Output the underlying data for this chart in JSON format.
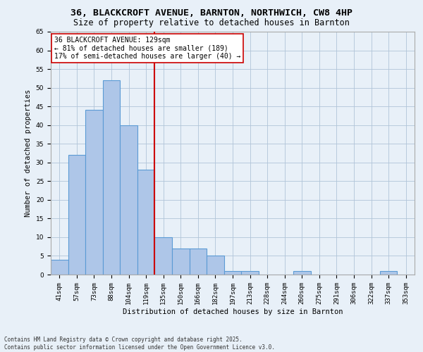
{
  "title_line1": "36, BLACKCROFT AVENUE, BARNTON, NORTHWICH, CW8 4HP",
  "title_line2": "Size of property relative to detached houses in Barnton",
  "xlabel": "Distribution of detached houses by size in Barnton",
  "ylabel": "Number of detached properties",
  "categories": [
    "41sqm",
    "57sqm",
    "73sqm",
    "88sqm",
    "104sqm",
    "119sqm",
    "135sqm",
    "150sqm",
    "166sqm",
    "182sqm",
    "197sqm",
    "213sqm",
    "228sqm",
    "244sqm",
    "260sqm",
    "275sqm",
    "291sqm",
    "306sqm",
    "322sqm",
    "337sqm",
    "353sqm"
  ],
  "values": [
    4,
    32,
    44,
    52,
    40,
    28,
    10,
    7,
    7,
    5,
    1,
    1,
    0,
    0,
    1,
    0,
    0,
    0,
    0,
    1,
    0
  ],
  "bar_color": "#aec6e8",
  "bar_edge_color": "#5b9bd5",
  "vline_x": 6.0,
  "vline_color": "#cc0000",
  "annotation_text": "36 BLACKCROFT AVENUE: 129sqm\n← 81% of detached houses are smaller (189)\n17% of semi-detached houses are larger (40) →",
  "annotation_box_color": "#ffffff",
  "annotation_box_edge": "#cc0000",
  "ylim": [
    0,
    65
  ],
  "yticks": [
    0,
    5,
    10,
    15,
    20,
    25,
    30,
    35,
    40,
    45,
    50,
    55,
    60,
    65
  ],
  "grid_color": "#b0c4d8",
  "background_color": "#e8f0f8",
  "footer_text": "Contains HM Land Registry data © Crown copyright and database right 2025.\nContains public sector information licensed under the Open Government Licence v3.0.",
  "title_fontsize": 9.5,
  "subtitle_fontsize": 8.5,
  "tick_fontsize": 6.5,
  "label_fontsize": 7.5,
  "annotation_fontsize": 7.0
}
